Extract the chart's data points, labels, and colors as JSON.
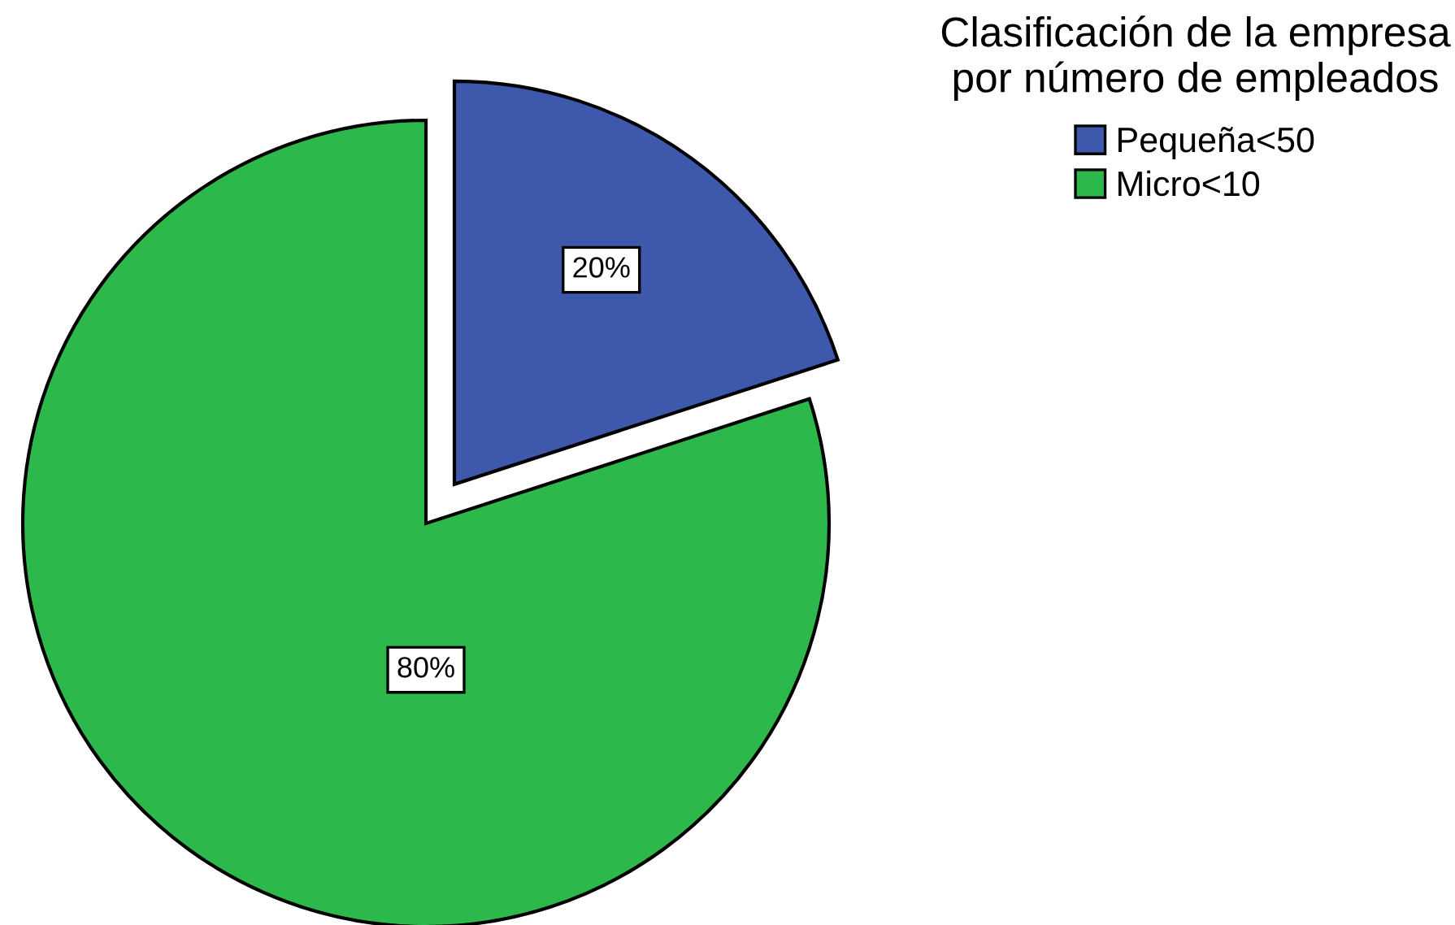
{
  "chart_data": {
    "type": "pie",
    "legend_title": "Clasificación de la empresa\npor número de empleados",
    "categories": [
      "Pequeña<50",
      "Micro<10"
    ],
    "values": [
      20,
      80
    ],
    "value_labels": [
      "20%",
      "80%"
    ],
    "colors": [
      "#3e58ac",
      "#2db84b"
    ],
    "legend": "top right"
  }
}
